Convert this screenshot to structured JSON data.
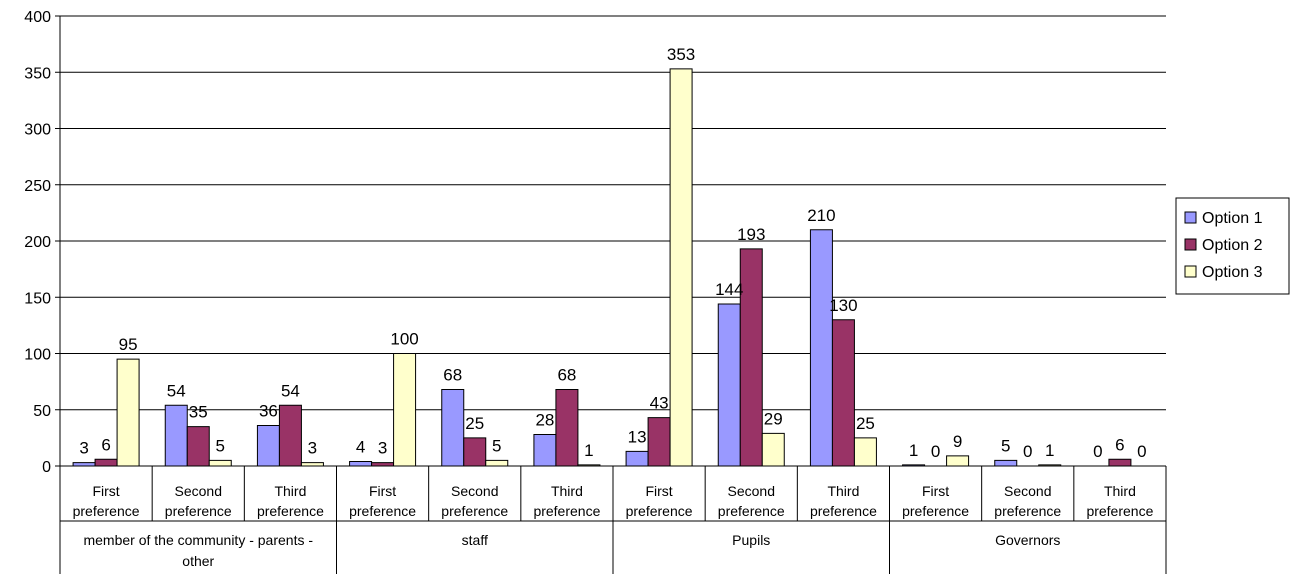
{
  "chart_data": {
    "type": "bar",
    "ylim": [
      0,
      400
    ],
    "y_ticks": [
      0,
      50,
      100,
      150,
      200,
      250,
      300,
      350,
      400
    ],
    "grid": true,
    "legend_position": "right",
    "groups": [
      {
        "label": "member of the community - parents - other",
        "subcategories": [
          "First preference",
          "Second preference",
          "Third preference"
        ]
      },
      {
        "label": "staff",
        "subcategories": [
          "First preference",
          "Second preference",
          "Third preference"
        ]
      },
      {
        "label": "Pupils",
        "subcategories": [
          "First preference",
          "Second preference",
          "Third preference"
        ]
      },
      {
        "label": "Governors",
        "subcategories": [
          "First preference",
          "Second preference",
          "Third preference"
        ]
      }
    ],
    "series": [
      {
        "name": "Option 1",
        "color": "#9999ff",
        "values": [
          3,
          54,
          36,
          4,
          68,
          28,
          13,
          144,
          210,
          1,
          5,
          0
        ]
      },
      {
        "name": "Option 2",
        "color": "#993366",
        "values": [
          6,
          35,
          54,
          3,
          25,
          68,
          43,
          193,
          130,
          0,
          0,
          6
        ]
      },
      {
        "name": "Option 3",
        "color": "#ffffcc",
        "values": [
          95,
          5,
          3,
          100,
          5,
          1,
          353,
          29,
          25,
          9,
          1,
          0
        ]
      }
    ]
  }
}
